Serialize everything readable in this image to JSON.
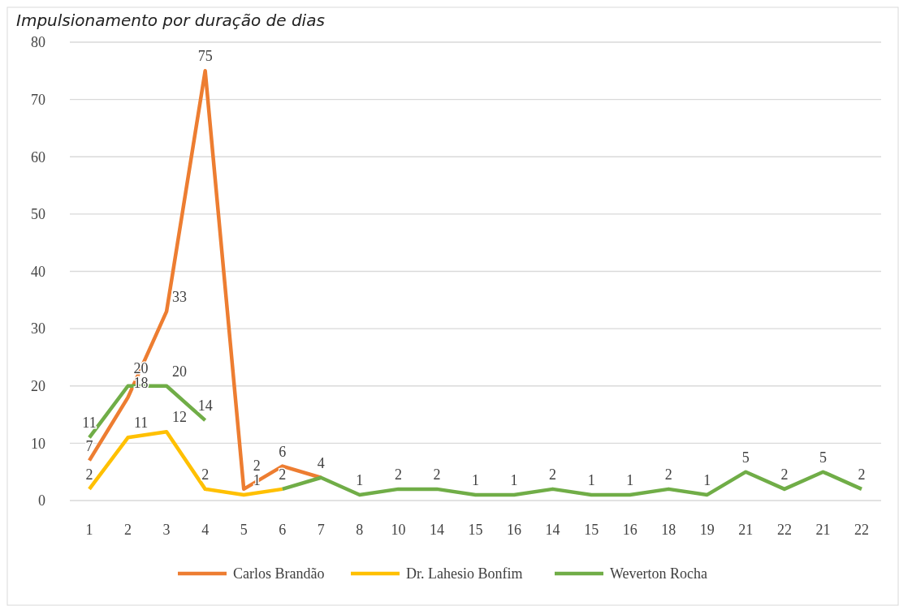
{
  "chart_data": {
    "type": "line",
    "title": "Impulsionamento por duração de dias",
    "categories": [
      "1",
      "2",
      "3",
      "4",
      "5",
      "6",
      "7",
      "8",
      "10",
      "14",
      "15",
      "16",
      "14",
      "15",
      "16",
      "18",
      "19",
      "21",
      "22",
      "21",
      "22"
    ],
    "series": [
      {
        "name": "Carlos Brandão",
        "color": "#ed7d31",
        "values": [
          7,
          18,
          33,
          75,
          2,
          6,
          4,
          null,
          null,
          null,
          null,
          null,
          null,
          null,
          null,
          null,
          null,
          null,
          null,
          null,
          null
        ],
        "value_labels": [
          "7",
          "18",
          "33",
          "75",
          "2",
          "6",
          null,
          null,
          null,
          null,
          null,
          null,
          null,
          null,
          null,
          null,
          null,
          null,
          null,
          null,
          null
        ]
      },
      {
        "name": "Dr. Lahesio Bonfim",
        "color": "#ffc000",
        "values": [
          2,
          11,
          12,
          2,
          1,
          2,
          null,
          null,
          null,
          null,
          null,
          null,
          null,
          null,
          null,
          null,
          null,
          null,
          null,
          null,
          null
        ],
        "value_labels": [
          "2",
          "11",
          "12",
          "2",
          "1",
          null,
          null,
          null,
          null,
          null,
          null,
          null,
          null,
          null,
          null,
          null,
          null,
          null,
          null,
          null,
          null
        ]
      },
      {
        "name": "Weverton Rocha",
        "color": "#70ad47",
        "values": [
          11,
          20,
          20,
          14,
          null,
          2,
          4,
          1,
          2,
          2,
          1,
          1,
          2,
          1,
          1,
          2,
          1,
          5,
          2,
          5,
          2
        ],
        "value_labels": [
          "11",
          "20",
          "20",
          "14",
          null,
          "2",
          "4",
          "1",
          "2",
          "2",
          "1",
          "1",
          "2",
          "1",
          "1",
          "2",
          "1",
          "5",
          "2",
          "5",
          "2"
        ]
      }
    ],
    "ylim": [
      0,
      80
    ],
    "yticks": [
      0,
      10,
      20,
      30,
      40,
      50,
      60,
      70,
      80
    ],
    "grid": "y",
    "legend": "bottom",
    "marker": "none",
    "line_style": "solid"
  }
}
